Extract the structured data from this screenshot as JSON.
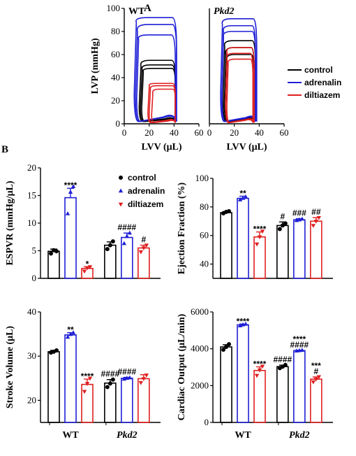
{
  "colors": {
    "control": "#000000",
    "adrenalin": "#1f1fd6",
    "diltiazem": "#e01f1f"
  },
  "panel_labels": [
    "A",
    "B"
  ],
  "chart_data": [
    {
      "type": "line",
      "id": "pvloop_wt",
      "title": "WT",
      "xlabel": "LVV (μL)",
      "ylabel": "LVP (mmHg)",
      "xlim": [
        0,
        60
      ],
      "ylim": [
        0,
        100
      ],
      "xticks": [
        "0",
        "20",
        "40",
        "60"
      ],
      "yticks": [
        "0",
        "20",
        "40",
        "60",
        "80",
        "100"
      ],
      "loops": [
        {
          "series": "control",
          "edv": 41,
          "esv": 14,
          "p_es": 45,
          "p_max": 48,
          "p_ed": 6,
          "p_min": 2
        },
        {
          "series": "control",
          "edv": 41,
          "esv": 13,
          "p_es": 47,
          "p_max": 51,
          "p_ed": 7,
          "p_min": 2
        },
        {
          "series": "control",
          "edv": 41,
          "esv": 12,
          "p_es": 50,
          "p_max": 55,
          "p_ed": 7,
          "p_min": 2
        },
        {
          "series": "adrenalin",
          "edv": 41,
          "esv": 10,
          "p_es": 73,
          "p_max": 77,
          "p_ed": 10,
          "p_min": 2
        },
        {
          "series": "adrenalin",
          "edv": 42,
          "esv": 9,
          "p_es": 80,
          "p_max": 86,
          "p_ed": 10,
          "p_min": 2
        },
        {
          "series": "adrenalin",
          "edv": 42,
          "esv": 8,
          "p_es": 88,
          "p_max": 92,
          "p_ed": 9,
          "p_min": 2
        },
        {
          "series": "diltiazem",
          "edv": 41,
          "esv": 22,
          "p_es": 26,
          "p_max": 30,
          "p_ed": 4,
          "p_min": 1
        },
        {
          "series": "diltiazem",
          "edv": 41,
          "esv": 20,
          "p_es": 30,
          "p_max": 33,
          "p_ed": 5,
          "p_min": 1
        },
        {
          "series": "diltiazem",
          "edv": 41,
          "esv": 19,
          "p_es": 33,
          "p_max": 35,
          "p_ed": 5,
          "p_min": 1
        }
      ]
    },
    {
      "type": "line",
      "id": "pvloop_pkd2",
      "title": "Pkd2",
      "xlabel": "LVV (μL)",
      "xlim": [
        0,
        60
      ],
      "ylim": [
        0,
        100
      ],
      "xticks": [
        "0",
        "20",
        "40",
        "60"
      ],
      "legend_position": "right",
      "legend": [
        "control",
        "adrenalin",
        "diltiazem"
      ],
      "loops": [
        {
          "series": "control",
          "edv": 36,
          "esv": 13,
          "p_es": 55,
          "p_max": 60,
          "p_ed": 6,
          "p_min": 2
        },
        {
          "series": "control",
          "edv": 36,
          "esv": 12,
          "p_es": 60,
          "p_max": 66,
          "p_ed": 6,
          "p_min": 2
        },
        {
          "series": "control",
          "edv": 37,
          "esv": 11,
          "p_es": 67,
          "p_max": 72,
          "p_ed": 7,
          "p_min": 2
        },
        {
          "series": "adrenalin",
          "edv": 37,
          "esv": 10,
          "p_es": 75,
          "p_max": 80,
          "p_ed": 8,
          "p_min": 2
        },
        {
          "series": "adrenalin",
          "edv": 37,
          "esv": 10,
          "p_es": 80,
          "p_max": 85,
          "p_ed": 8,
          "p_min": 2
        },
        {
          "series": "adrenalin",
          "edv": 38,
          "esv": 9,
          "p_es": 86,
          "p_max": 91,
          "p_ed": 9,
          "p_min": 2
        },
        {
          "series": "diltiazem",
          "edv": 35,
          "esv": 14,
          "p_es": 52,
          "p_max": 56,
          "p_ed": 5,
          "p_min": 1
        },
        {
          "series": "diltiazem",
          "edv": 35,
          "esv": 13,
          "p_es": 57,
          "p_max": 61,
          "p_ed": 5,
          "p_min": 1
        },
        {
          "series": "diltiazem",
          "edv": 36,
          "esv": 13,
          "p_es": 62,
          "p_max": 66,
          "p_ed": 6,
          "p_min": 1
        }
      ]
    },
    {
      "type": "bar",
      "id": "espvr",
      "ylabel": "ESPVR (mmHg/μL)",
      "ylim": [
        0,
        20
      ],
      "yticks": [
        "0",
        "5",
        "10",
        "15",
        "20"
      ],
      "groups": [
        "WT",
        "Pkd2"
      ],
      "legend_position": "top",
      "series": [
        {
          "name": "control",
          "values": [
            4.9,
            6.0
          ],
          "err": [
            0.4,
            0.6
          ],
          "points": [
            [
              4.5,
              5.1,
              4.9
            ],
            [
              5.3,
              6.0,
              6.7
            ]
          ],
          "sig": [
            "",
            ""
          ]
        },
        {
          "name": "adrenalin",
          "values": [
            14.6,
            7.4
          ],
          "err": [
            1.7,
            0.8
          ],
          "points": [
            [
              11.7,
              15.6,
              16.6
            ],
            [
              6.3,
              7.6,
              8.2
            ]
          ],
          "sig": [
            "****",
            "####"
          ]
        },
        {
          "name": "diltiazem",
          "values": [
            1.8,
            5.5
          ],
          "err": [
            0.3,
            0.5
          ],
          "points": [
            [
              1.3,
              1.9,
              2.1
            ],
            [
              4.8,
              5.5,
              6.0
            ]
          ],
          "sig": [
            "*",
            "#"
          ]
        }
      ]
    },
    {
      "type": "bar",
      "id": "ejection_fraction",
      "ylabel": "Ejection Fraction (%)",
      "ylim": [
        30,
        100
      ],
      "yticks": [
        "40",
        "60",
        "80",
        "100"
      ],
      "groups": [
        "WT",
        "Pkd2"
      ],
      "series": [
        {
          "name": "control",
          "values": [
            76,
            67
          ],
          "err": [
            0.8,
            2.5
          ],
          "points": [
            [
              75.5,
              76.5,
              77
            ],
            [
              64.5,
              67,
              68.5
            ]
          ],
          "sig": [
            "",
            "#"
          ]
        },
        {
          "name": "adrenalin",
          "values": [
            86,
            71
          ],
          "err": [
            1.5,
            0.8
          ],
          "points": [
            [
              85,
              86,
              87
            ],
            [
              70.5,
              71,
              71.5
            ]
          ],
          "sig": [
            "**",
            "###"
          ]
        },
        {
          "name": "diltiazem",
          "values": [
            59,
            70
          ],
          "err": [
            3.5,
            2.5
          ],
          "points": [
            [
              54,
              59,
              63
            ],
            [
              67,
              70,
              72.5
            ]
          ],
          "sig": [
            "****",
            "##"
          ]
        }
      ]
    },
    {
      "type": "bar",
      "id": "stroke_volume",
      "ylabel": "Stroke Volume (μL)",
      "ylim": [
        15,
        40
      ],
      "yticks": [
        "20",
        "30",
        "40"
      ],
      "groups": [
        "WT",
        "Pkd2"
      ],
      "series": [
        {
          "name": "control",
          "values": [
            31.0,
            23.9
          ],
          "err": [
            0.3,
            0.8
          ],
          "points": [
            [
              30.8,
              31.0,
              31.3
            ],
            [
              23.0,
              23.8,
              24.7
            ]
          ],
          "sig": [
            "",
            "####"
          ]
        },
        {
          "name": "adrenalin",
          "values": [
            34.8,
            25.0
          ],
          "err": [
            0.5,
            0.2
          ],
          "points": [
            [
              34.3,
              34.9,
              35.3
            ],
            [
              24.8,
              25.0,
              25.1
            ]
          ],
          "sig": [
            "**",
            "####"
          ]
        },
        {
          "name": "diltiazem",
          "values": [
            23.6,
            24.9
          ],
          "err": [
            1.2,
            0.9
          ],
          "points": [
            [
              22.0,
              23.8,
              25.0
            ],
            [
              24.0,
              24.9,
              25.7
            ]
          ],
          "sig": [
            "****",
            ""
          ]
        }
      ]
    },
    {
      "type": "bar",
      "id": "cardiac_output",
      "ylabel": "Cardiac Output (μL/min)",
      "ylim": [
        0,
        6000
      ],
      "yticks": [
        "0",
        "2000",
        "4000",
        "6000"
      ],
      "groups": [
        "WT",
        "Pkd2"
      ],
      "series": [
        {
          "name": "control",
          "values": [
            4100,
            3030
          ],
          "err": [
            120,
            80
          ],
          "points": [
            [
              3950,
              4100,
              4250
            ],
            [
              2950,
              3030,
              3120
            ]
          ],
          "sig": [
            "",
            "####"
          ]
        },
        {
          "name": "adrenalin",
          "values": [
            5300,
            3900
          ],
          "err": [
            40,
            20
          ],
          "points": [
            [
              5250,
              5300,
              5340
            ],
            [
              3880,
              3900,
              3920
            ]
          ],
          "sig": [
            "****",
            "****\n####"
          ]
        },
        {
          "name": "diltiazem",
          "values": [
            2820,
            2350
          ],
          "err": [
            200,
            120
          ],
          "points": [
            [
              2550,
              2850,
              3050
            ],
            [
              2200,
              2350,
              2480
            ]
          ],
          "sig": [
            "****",
            "***\n#"
          ]
        }
      ]
    }
  ]
}
